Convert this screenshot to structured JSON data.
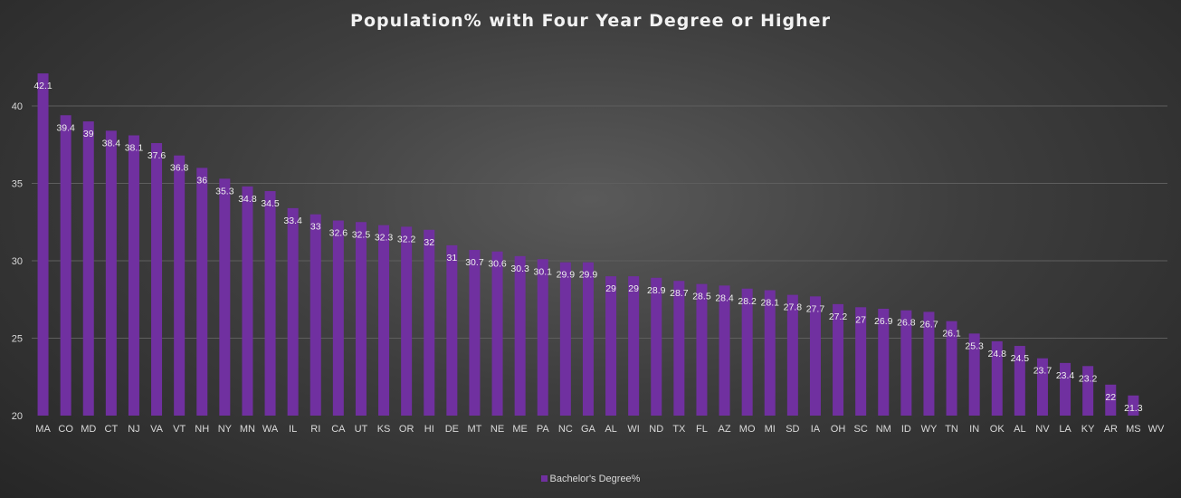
{
  "chart_data": {
    "type": "bar",
    "title": "Population% with Four Year Degree or Higher",
    "categories": [
      "MA",
      "CO",
      "MD",
      "CT",
      "NJ",
      "VA",
      "VT",
      "NH",
      "NY",
      "MN",
      "WA",
      "IL",
      "RI",
      "CA",
      "UT",
      "KS",
      "OR",
      "HI",
      "DE",
      "MT",
      "NE",
      "ME",
      "PA",
      "NC",
      "GA",
      "AL",
      "WI",
      "ND",
      "TX",
      "FL",
      "AZ",
      "MO",
      "MI",
      "SD",
      "IA",
      "OH",
      "SC",
      "NM",
      "ID",
      "WY",
      "TN",
      "IN",
      "OK",
      "AL",
      "NV",
      "LA",
      "KY",
      "AR",
      "MS",
      "WV"
    ],
    "series": [
      {
        "name": "Bachelor's Degree%",
        "values": [
          42.1,
          39.4,
          39,
          38.4,
          38.1,
          37.6,
          36.8,
          36,
          35.3,
          34.8,
          34.5,
          33.4,
          33,
          32.6,
          32.5,
          32.3,
          32.2,
          32,
          31,
          30.7,
          30.6,
          30.3,
          30.1,
          29.9,
          29.9,
          29,
          29,
          28.9,
          28.7,
          28.5,
          28.4,
          28.2,
          28.1,
          27.8,
          27.7,
          27.2,
          27,
          26.9,
          26.8,
          26.7,
          26.1,
          25.3,
          24.8,
          24.5,
          23.7,
          23.4,
          23.2,
          22,
          21.3,
          null
        ]
      }
    ],
    "ylim": [
      20,
      43
    ],
    "yticks": [
      20,
      25,
      30,
      35,
      40
    ],
    "grid": true,
    "legend_position": "bottom",
    "colors": {
      "bar": "#7030a0",
      "background": "#404040"
    }
  }
}
